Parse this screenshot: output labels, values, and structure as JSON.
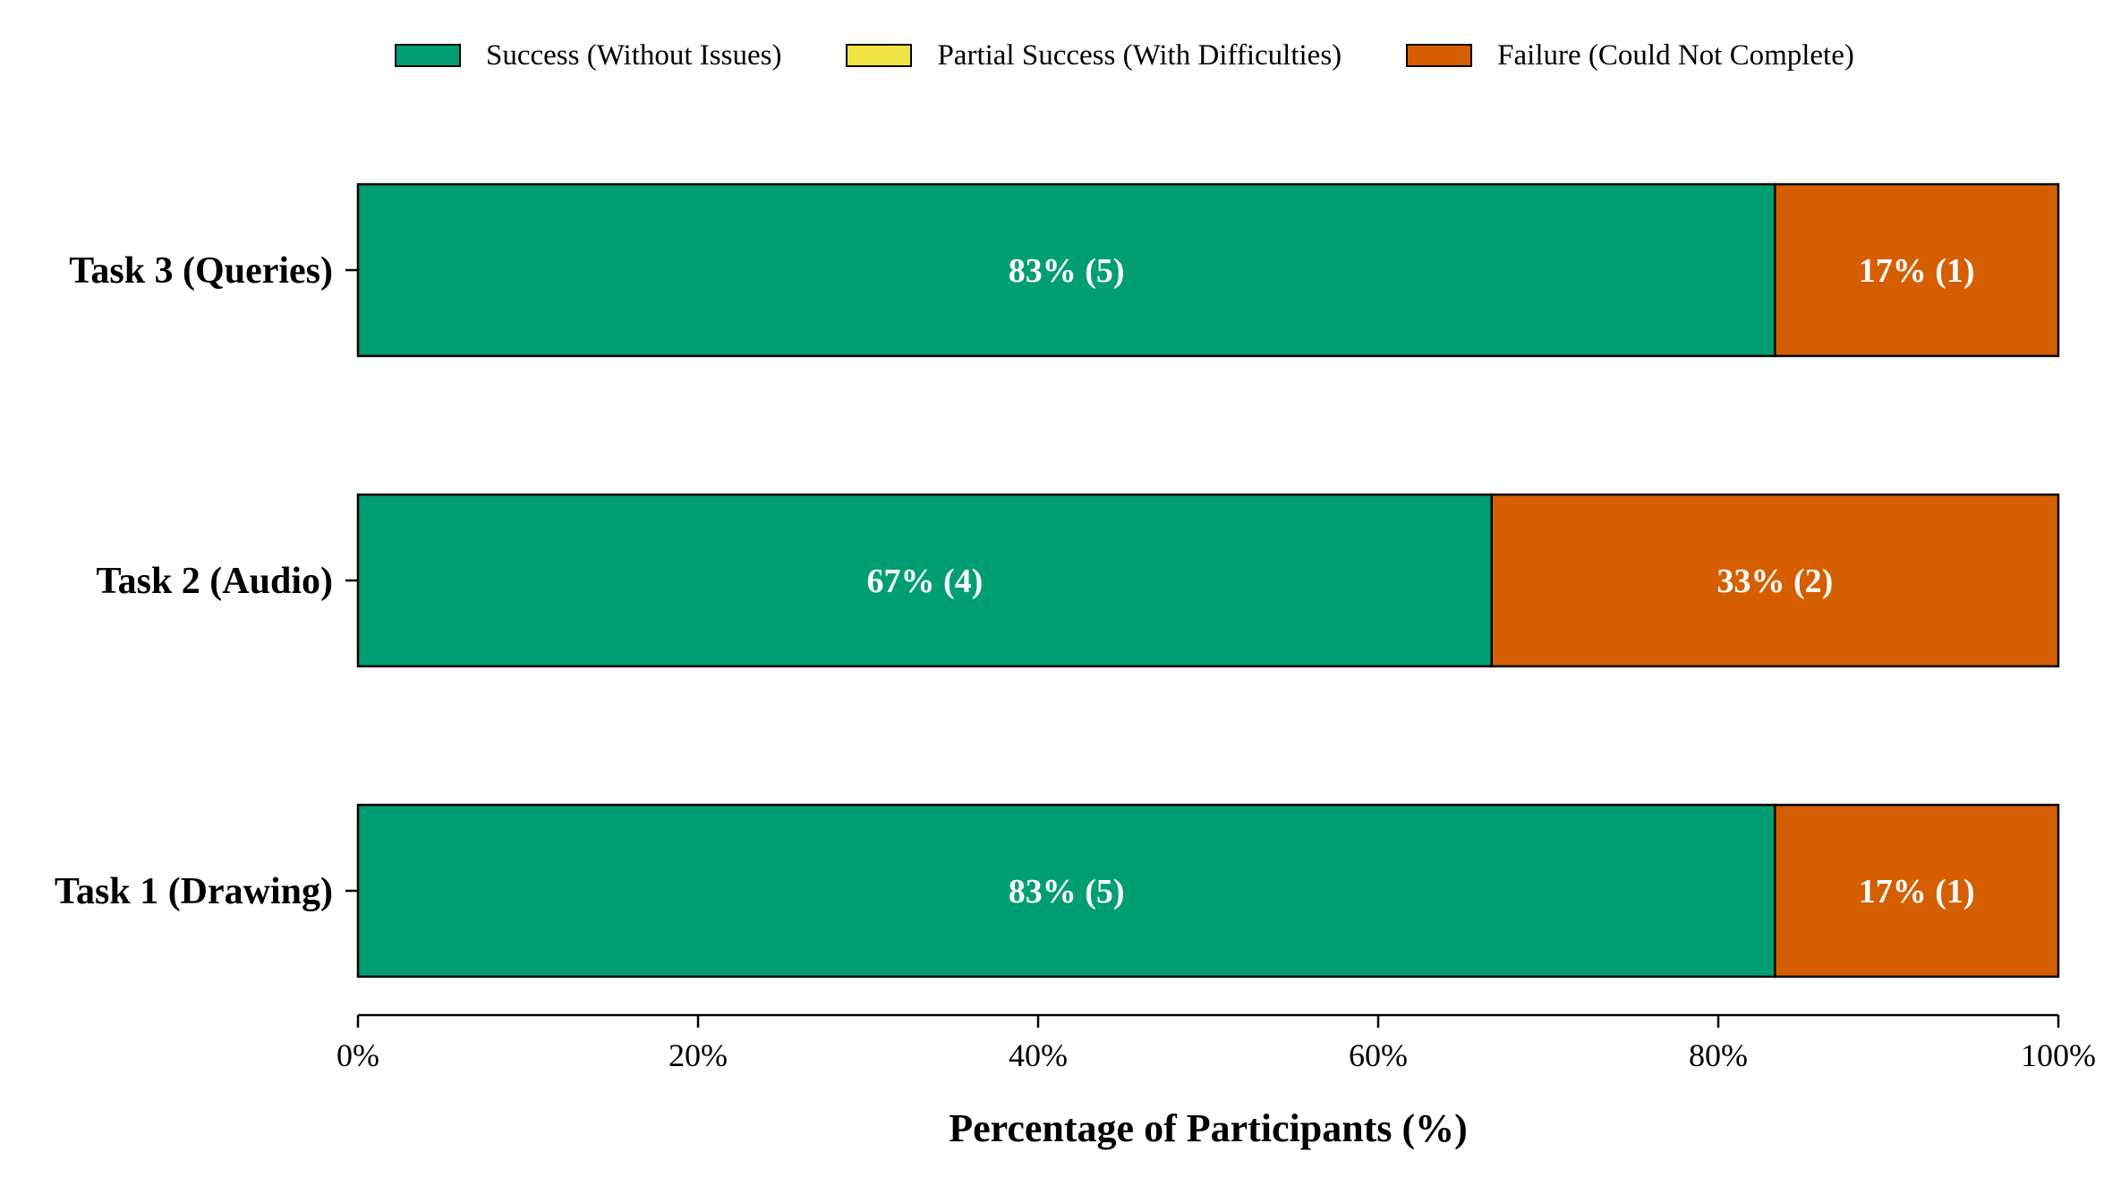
{
  "chart_data": {
    "type": "bar",
    "orientation": "horizontal",
    "stacked": true,
    "categories": [
      "Task 3 (Queries)",
      "Task 2 (Audio)",
      "Task 1 (Drawing)"
    ],
    "series": [
      {
        "name": "Success (Without Issues)",
        "color": "#009E73",
        "values": [
          83.33,
          66.67,
          83.33
        ],
        "labels": [
          "83% (5)",
          "67% (4)",
          "83% (5)"
        ]
      },
      {
        "name": "Partial Success (With Difficulties)",
        "color": "#F0E442",
        "values": [
          0,
          0,
          0
        ],
        "labels": [
          "",
          "",
          ""
        ]
      },
      {
        "name": "Failure (Could Not Complete)",
        "color": "#D55E00",
        "values": [
          16.67,
          33.33,
          16.67
        ],
        "labels": [
          "17% (1)",
          "33% (2)",
          "17% (1)"
        ]
      }
    ],
    "xlabel": "Percentage of Participants (%)",
    "ylabel": "",
    "xlim": [
      0,
      100
    ],
    "xticks": [
      "0%",
      "20%",
      "40%",
      "60%",
      "80%",
      "100%"
    ],
    "legend_position": "top",
    "grid": false
  }
}
